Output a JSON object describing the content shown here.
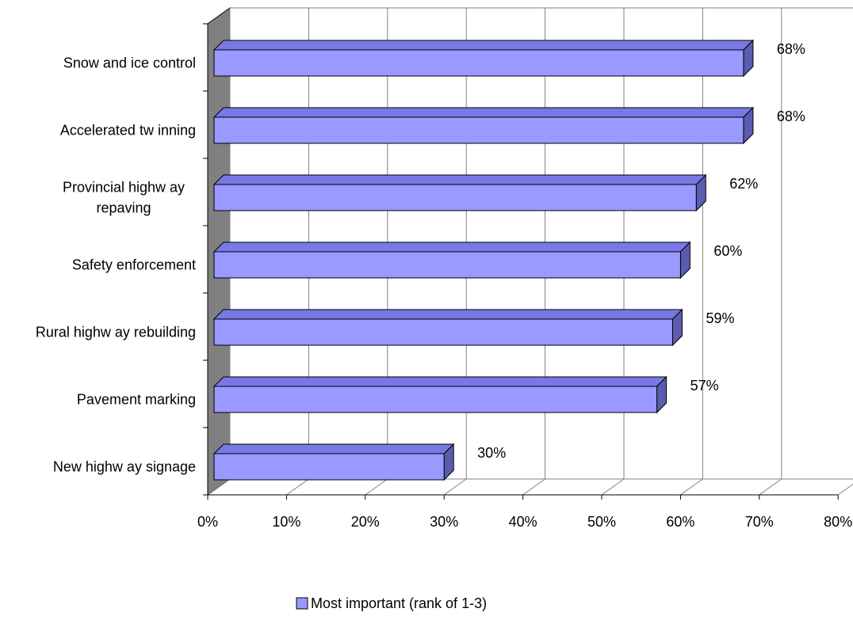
{
  "chart_data": {
    "type": "bar",
    "orientation": "horizontal",
    "three_d": true,
    "categories": [
      "Snow  and ice control",
      "Accelerated tw inning",
      "Provincial highw ay repaving",
      "Safety enforcement",
      "Rural highw ay rebuilding",
      "Pavement marking",
      "New  highw ay signage"
    ],
    "category_label_lines": [
      [
        "Snow  and ice control"
      ],
      [
        "Accelerated tw inning"
      ],
      [
        "Provincial highw ay",
        "repaving"
      ],
      [
        "Safety enforcement"
      ],
      [
        "Rural highw ay rebuilding"
      ],
      [
        "Pavement marking"
      ],
      [
        "New  highw ay signage"
      ]
    ],
    "series": [
      {
        "name": "Most important (rank of 1-3)",
        "values": [
          68,
          68,
          62,
          60,
          59,
          57,
          30
        ],
        "labels": [
          "68%",
          "68%",
          "62%",
          "60%",
          "59%",
          "57%",
          "30%"
        ],
        "color": "#9999ff"
      }
    ],
    "xlim": [
      0,
      80
    ],
    "x_ticks": [
      0,
      10,
      20,
      30,
      40,
      50,
      60,
      70,
      80
    ],
    "x_tick_labels": [
      "0%",
      "10%",
      "20%",
      "30%",
      "40%",
      "50%",
      "60%",
      "70%",
      "80%"
    ],
    "grid": true,
    "legend": {
      "position": "bottom"
    },
    "colors": {
      "bar_front": "#9999ff",
      "bar_top": "#7878e6",
      "bar_side": "#5b5bb0",
      "wall_side": "#808080",
      "grid": "#808080",
      "outline": "#000000"
    }
  }
}
